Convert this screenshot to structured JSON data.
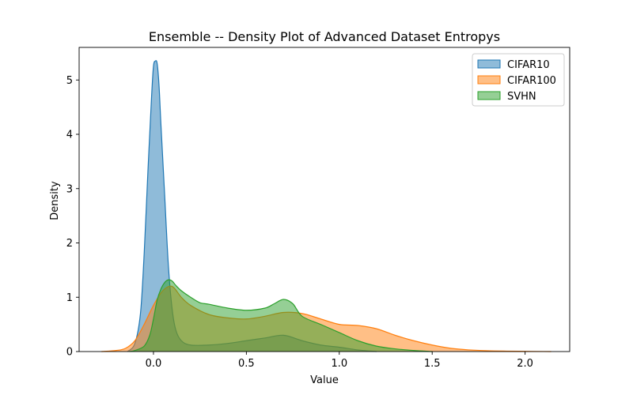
{
  "chart_data": {
    "type": "area",
    "title": "Ensemble -- Density Plot of Advanced Dataset Entropys",
    "xlabel": "Value",
    "ylabel": "Density",
    "xlim": [
      -0.4,
      2.24
    ],
    "ylim": [
      0,
      5.6
    ],
    "xticks": [
      "0.0",
      "0.5",
      "1.0",
      "1.5",
      "2.0"
    ],
    "xtick_values": [
      0,
      0.5,
      1.0,
      1.5,
      2.0
    ],
    "yticks": [
      "0",
      "1",
      "2",
      "3",
      "4",
      "5"
    ],
    "ytick_values": [
      0,
      1,
      2,
      3,
      4,
      5
    ],
    "grid": false,
    "legend_position": "top-right",
    "series": [
      {
        "name": "CIFAR10",
        "color": "#1f77b4",
        "x": [
          -0.14,
          -0.1,
          -0.07,
          -0.05,
          -0.03,
          -0.01,
          0.0,
          0.01,
          0.02,
          0.03,
          0.04,
          0.06,
          0.08,
          0.1,
          0.12,
          0.15,
          0.2,
          0.3,
          0.4,
          0.5,
          0.6,
          0.7,
          0.8,
          0.9,
          1.0,
          1.1,
          1.2
        ],
        "y": [
          0.0,
          0.15,
          0.7,
          1.8,
          3.3,
          4.7,
          5.25,
          5.35,
          5.3,
          4.9,
          4.2,
          2.9,
          1.6,
          0.8,
          0.4,
          0.2,
          0.12,
          0.12,
          0.15,
          0.2,
          0.25,
          0.3,
          0.2,
          0.12,
          0.08,
          0.03,
          0.0
        ]
      },
      {
        "name": "CIFAR100",
        "color": "#ff7f0e",
        "x": [
          -0.28,
          -0.2,
          -0.15,
          -0.1,
          -0.05,
          0.0,
          0.05,
          0.1,
          0.15,
          0.2,
          0.3,
          0.4,
          0.5,
          0.6,
          0.7,
          0.8,
          0.9,
          1.0,
          1.1,
          1.2,
          1.3,
          1.4,
          1.5,
          1.6,
          1.7,
          1.8,
          1.9,
          2.0,
          2.1,
          2.14
        ],
        "y": [
          0.0,
          0.02,
          0.06,
          0.2,
          0.5,
          0.85,
          1.12,
          1.2,
          1.0,
          0.85,
          0.68,
          0.62,
          0.6,
          0.65,
          0.72,
          0.7,
          0.6,
          0.5,
          0.48,
          0.42,
          0.3,
          0.2,
          0.12,
          0.06,
          0.03,
          0.015,
          0.008,
          0.004,
          0.001,
          0.0
        ]
      },
      {
        "name": "SVHN",
        "color": "#2ca02c",
        "x": [
          -0.13,
          -0.1,
          -0.05,
          -0.02,
          0.0,
          0.02,
          0.04,
          0.06,
          0.08,
          0.1,
          0.12,
          0.15,
          0.2,
          0.25,
          0.3,
          0.4,
          0.5,
          0.6,
          0.65,
          0.7,
          0.75,
          0.8,
          0.9,
          1.0,
          1.1,
          1.2,
          1.3,
          1.4,
          1.5
        ],
        "y": [
          0.0,
          0.02,
          0.1,
          0.3,
          0.6,
          0.95,
          1.15,
          1.27,
          1.32,
          1.3,
          1.22,
          1.12,
          1.0,
          0.9,
          0.87,
          0.8,
          0.76,
          0.8,
          0.88,
          0.96,
          0.88,
          0.65,
          0.5,
          0.35,
          0.2,
          0.1,
          0.05,
          0.02,
          0.0
        ]
      }
    ]
  }
}
